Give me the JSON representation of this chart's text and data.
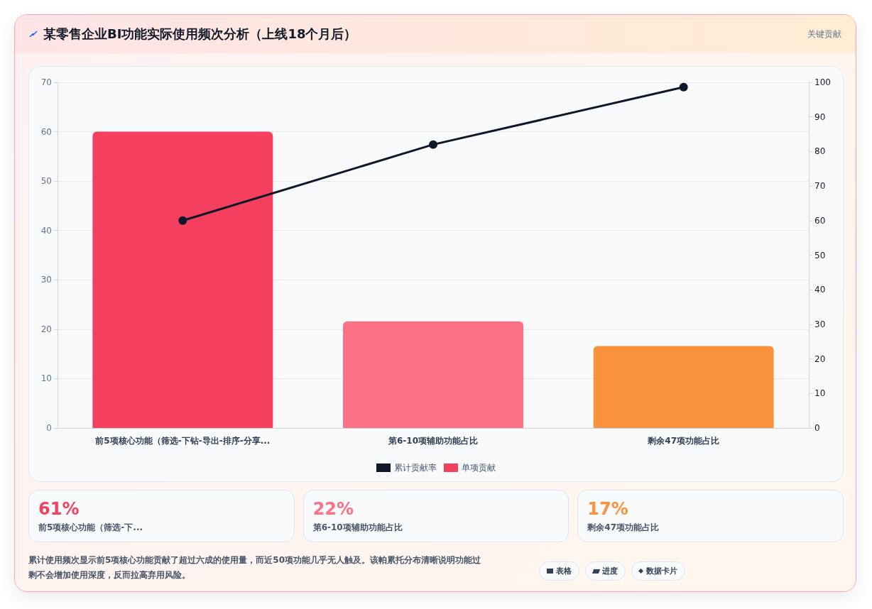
{
  "chart_data": {
    "type": "bar",
    "title": "某零售企业BI功能实际使用频次分析（上线18个月后）",
    "categories": [
      "前5项核心功能（筛选-下钻-导出-排序-分享...",
      "第6-10项辅助功能占比",
      "剩余47项功能占比"
    ],
    "series": [
      {
        "name": "单项贡献",
        "color": "#f43f5e",
        "colors": [
          "#f43f5e",
          "#fb7185",
          "#fb923c"
        ],
        "values": [
          60,
          21.6,
          16.6
        ]
      },
      {
        "name": "累计贡献率",
        "type": "line",
        "axis": "y2",
        "color": "#0f172a",
        "values": [
          60,
          82,
          98.6
        ]
      }
    ],
    "ylim": [
      0,
      70
    ],
    "yticks": [
      0,
      10,
      20,
      30,
      40,
      50,
      60,
      70
    ],
    "y2lim": [
      0,
      100
    ],
    "y2ticks": [
      0,
      10,
      20,
      30,
      40,
      50,
      60,
      70,
      80,
      90,
      100
    ],
    "grid": "y",
    "legend": "bottom",
    "marker": "circle",
    "annotations": [
      "关键贡献",
      "61%",
      "前5项核心功能（筛选-下...",
      "22%",
      "第6-10项辅助功能占比",
      "17%",
      "剩余47项功能占比",
      "累计使用频次显示前5项核心功能贡献了超过六成的使用量，而近50项功能几乎无人触及。该帕累托分布清晰说明功能过剩不会增加使用深度，反而拉高弃用风险。",
      "表格",
      "进度",
      "数据卡片"
    ]
  }
}
